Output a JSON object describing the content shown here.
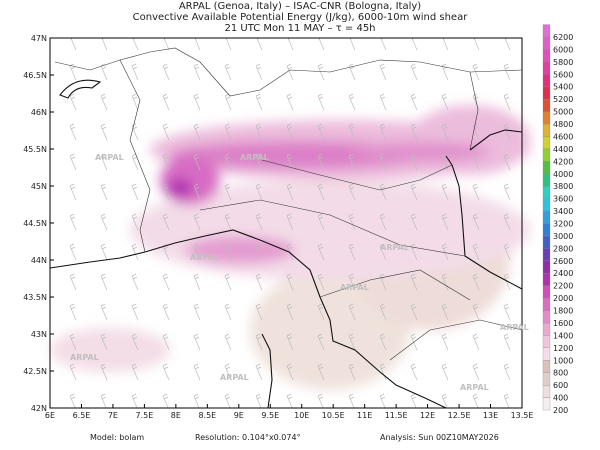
{
  "header": {
    "lines": [
      "ARPAL (Genoa, Italy)  –  ISAC-CNR (Bologna, Italy)",
      "Convective Available Potential Energy (J/kg), 6000-10m wind shear",
      "21 UTC Mon 11 MAY  –  τ = 45h"
    ]
  },
  "map": {
    "lon_labels": [
      "6E",
      "6.5E",
      "7E",
      "7.5E",
      "8E",
      "8.5E",
      "9E",
      "9.5E",
      "10E",
      "10.5E",
      "11E",
      "11.5E",
      "12E",
      "12.5E",
      "13E",
      "13.5E"
    ],
    "lat_labels": [
      "42N",
      "42.5N",
      "43N",
      "43.5N",
      "44N",
      "44.5N",
      "45N",
      "45.5N",
      "46N",
      "46.5N",
      "47N"
    ],
    "watermark": "ARPAL"
  },
  "colorbar": {
    "levels": [
      200,
      400,
      600,
      800,
      1000,
      1200,
      1400,
      1600,
      1800,
      2000,
      2200,
      2400,
      2600,
      2800,
      3000,
      3200,
      3400,
      3600,
      3800,
      4000,
      4200,
      4400,
      4600,
      4800,
      5000,
      5200,
      5400,
      5600,
      5800,
      6000,
      6200
    ],
    "colors": [
      "#f5eeee",
      "#ecdfdc",
      "#e0cfc8",
      "#d9c0b8",
      "#f5dcea",
      "#f0c4de",
      "#eaa8d2",
      "#e48cc8",
      "#dc6ec0",
      "#d050b8",
      "#b030b0",
      "#9030a8",
      "#6a40b8",
      "#4060c8",
      "#3080d8",
      "#30a0e0",
      "#30c0e0",
      "#30d0c0",
      "#30c080",
      "#50c040",
      "#90d030",
      "#d0d030",
      "#e0b030",
      "#e08030",
      "#e05030",
      "#e03050",
      "#e03080",
      "#e040a0",
      "#e050b8",
      "#e060c8",
      "#e070d0"
    ]
  },
  "footer": {
    "model": "Model: bolam",
    "resolution": "Resolution: 0.104°x0.074°",
    "analysis": "Analysis: Sun 00Z10MAY2026"
  }
}
